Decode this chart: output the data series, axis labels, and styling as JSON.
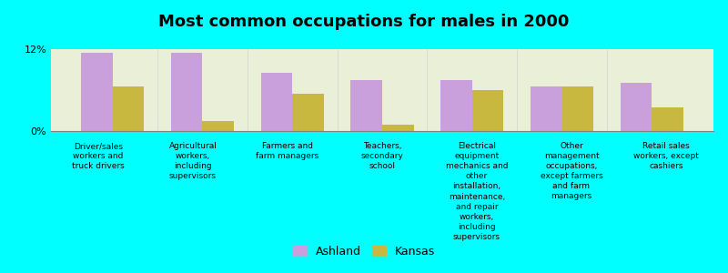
{
  "title": "Most common occupations for males in 2000",
  "categories": [
    "Driver/sales\nworkers and\ntruck drivers",
    "Agricultural\nworkers,\nincluding\nsupervisors",
    "Farmers and\nfarm managers",
    "Teachers,\nsecondary\nschool",
    "Electrical\nequipment\nmechanics and\nother\ninstallation,\nmaintenance,\nand repair\nworkers,\nincluding\nsupervisors",
    "Other\nmanagement\noccupations,\nexcept farmers\nand farm\nmanagers",
    "Retail sales\nworkers, except\ncashiers"
  ],
  "ashland_values": [
    11.5,
    11.5,
    8.5,
    7.5,
    7.5,
    6.5,
    7.0
  ],
  "kansas_values": [
    6.5,
    1.5,
    5.5,
    1.0,
    6.0,
    6.5,
    3.5
  ],
  "ashland_color": "#c9a0dc",
  "kansas_color": "#c8b840",
  "background_color": "#00ffff",
  "plot_bg_color": "#eaf0d8",
  "ylim": [
    0,
    12
  ],
  "ytick_labels": [
    "0%",
    "12%"
  ],
  "bar_width": 0.35,
  "legend_labels": [
    "Ashland",
    "Kansas"
  ],
  "figsize": [
    8.0,
    3.0
  ],
  "dpi": 100
}
